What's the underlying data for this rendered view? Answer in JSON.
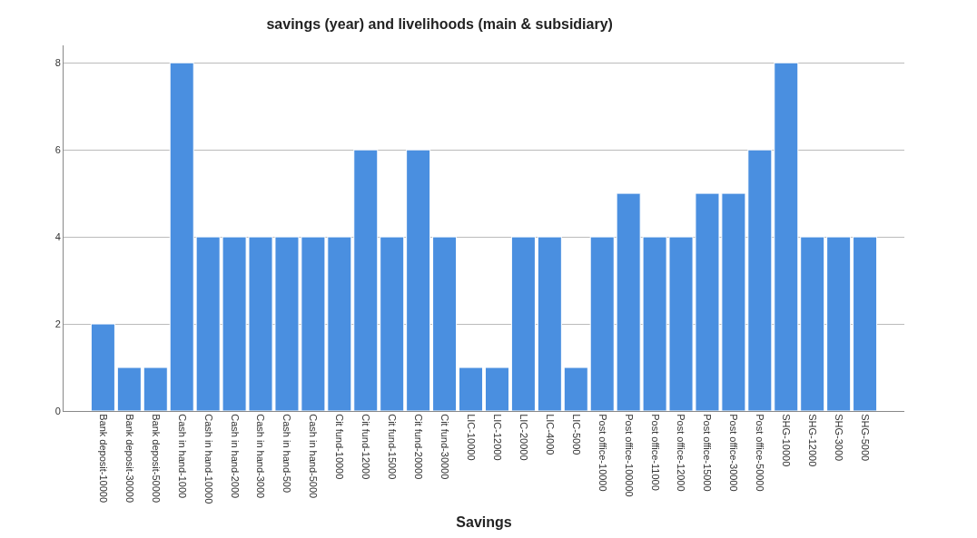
{
  "chart_data": {
    "type": "bar",
    "title": "savings (year) and livelihoods (main & subsidiary)",
    "xlabel": "Savings",
    "categories": [
      "Bank deposit-10000",
      "Bank deposit-30000",
      "Bank deposit-50000",
      "Cash in hand-1000",
      "Cash in hand-10000",
      "Cash in hand-2000",
      "Cash in hand-3000",
      "Cash in hand-500",
      "Cash in hand-5000",
      "Cit fund-10000",
      "Cit fund-12000",
      "Cit fund-15000",
      "Cit fund-20000",
      "Cit fund-30000",
      "LIC-10000",
      "LIC-12000",
      "LIC-20000",
      "LIC-4000",
      "LIC-5000",
      "Post office-10000",
      "Post office-100000",
      "Post office-11000",
      "Post office-12000",
      "Post office-15000",
      "Post office-30000",
      "Post office-50000",
      "SHG-10000",
      "SHG-12000",
      "SHG-3000",
      "SHG-5000"
    ],
    "values": [
      2,
      1,
      1,
      8,
      4,
      4,
      4,
      4,
      4,
      4,
      6,
      4,
      6,
      4,
      1,
      1,
      4,
      4,
      1,
      4,
      5,
      4,
      4,
      5,
      5,
      6,
      8,
      4,
      4,
      4
    ],
    "color": "#4a8fe0",
    "ylim": [
      0,
      8.4
    ],
    "yticks": [
      0,
      2,
      4,
      6,
      8
    ],
    "grid": "y"
  }
}
